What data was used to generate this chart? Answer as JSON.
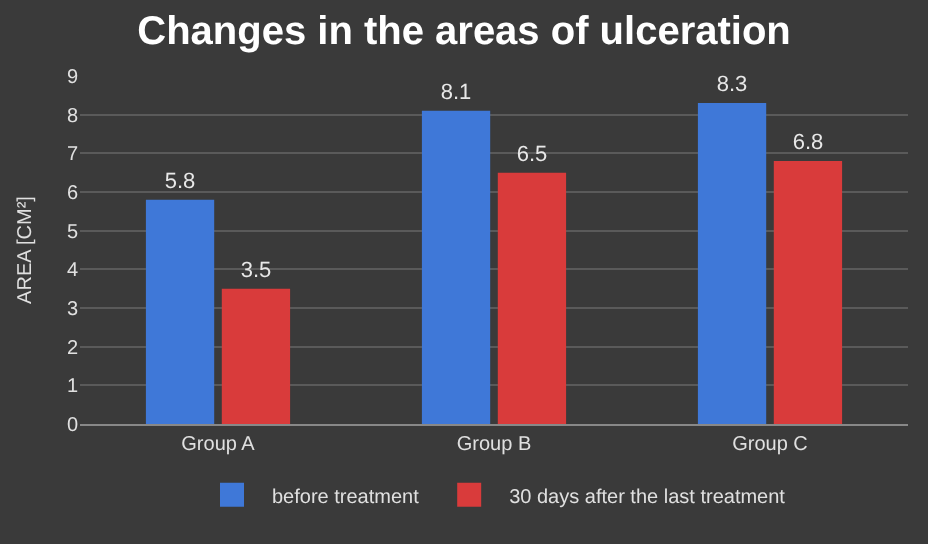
{
  "chart_data": {
    "type": "bar",
    "title": "Changes in the areas of ulceration",
    "ylabel": "AREA [CM²]",
    "categories": [
      "Group A",
      "Group B",
      "Group C"
    ],
    "series": [
      {
        "name": "before treatment",
        "color": "#3f78d8",
        "values": [
          5.8,
          8.1,
          8.3
        ]
      },
      {
        "name": "30 days after the last treatment",
        "color": "#d93b3b",
        "values": [
          3.5,
          6.5,
          6.8
        ]
      }
    ],
    "ylim": [
      0,
      9
    ],
    "yticks": [
      0,
      1,
      2,
      3,
      4,
      5,
      6,
      7,
      8,
      9
    ],
    "grid": "y",
    "legend": "bottom",
    "data_labels": true
  }
}
